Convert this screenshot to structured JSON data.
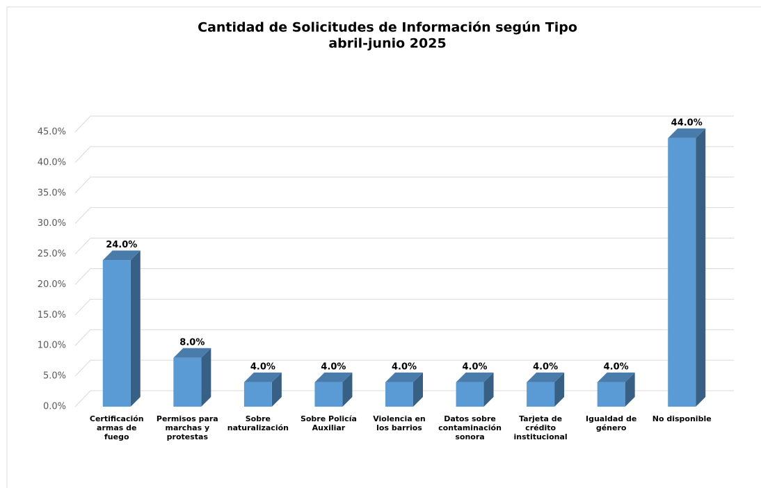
{
  "chart_data": {
    "type": "bar3d",
    "title": "Cantidad de Solicitudes de Información según Tipo",
    "subtitle": "abril-junio 2025",
    "categories": [
      "Certificación armas de fuego",
      "Permisos para marchas y protestas",
      "Sobre naturalización",
      "Sobre Policía Auxiliar",
      "Violencia en los barrios",
      "Datos sobre contaminación sonora",
      "Tarjeta de crédito institucional",
      "Igualdad de género",
      "No disponible"
    ],
    "values": [
      24,
      8,
      4,
      4,
      4,
      4,
      4,
      4,
      44
    ],
    "value_labels": [
      "24.0%",
      "8.0%",
      "4.0%",
      "4.0%",
      "4.0%",
      "4.0%",
      "4.0%",
      "4.0%",
      "44.0%"
    ],
    "color": "#5b9bd5",
    "ylim": [
      0,
      45
    ],
    "yticks": [
      {
        "value": 0,
        "label": "0.0%"
      },
      {
        "value": 5,
        "label": "5.0%"
      },
      {
        "value": 10,
        "label": "10.0%"
      },
      {
        "value": 15,
        "label": "15.0%"
      },
      {
        "value": 20,
        "label": "20.0%"
      },
      {
        "value": 25,
        "label": "25.0%"
      },
      {
        "value": 30,
        "label": "30.0%"
      },
      {
        "value": 35,
        "label": "35.0%"
      },
      {
        "value": 40,
        "label": "40.0%"
      },
      {
        "value": 45,
        "label": "45.0%"
      }
    ],
    "grid": true
  }
}
